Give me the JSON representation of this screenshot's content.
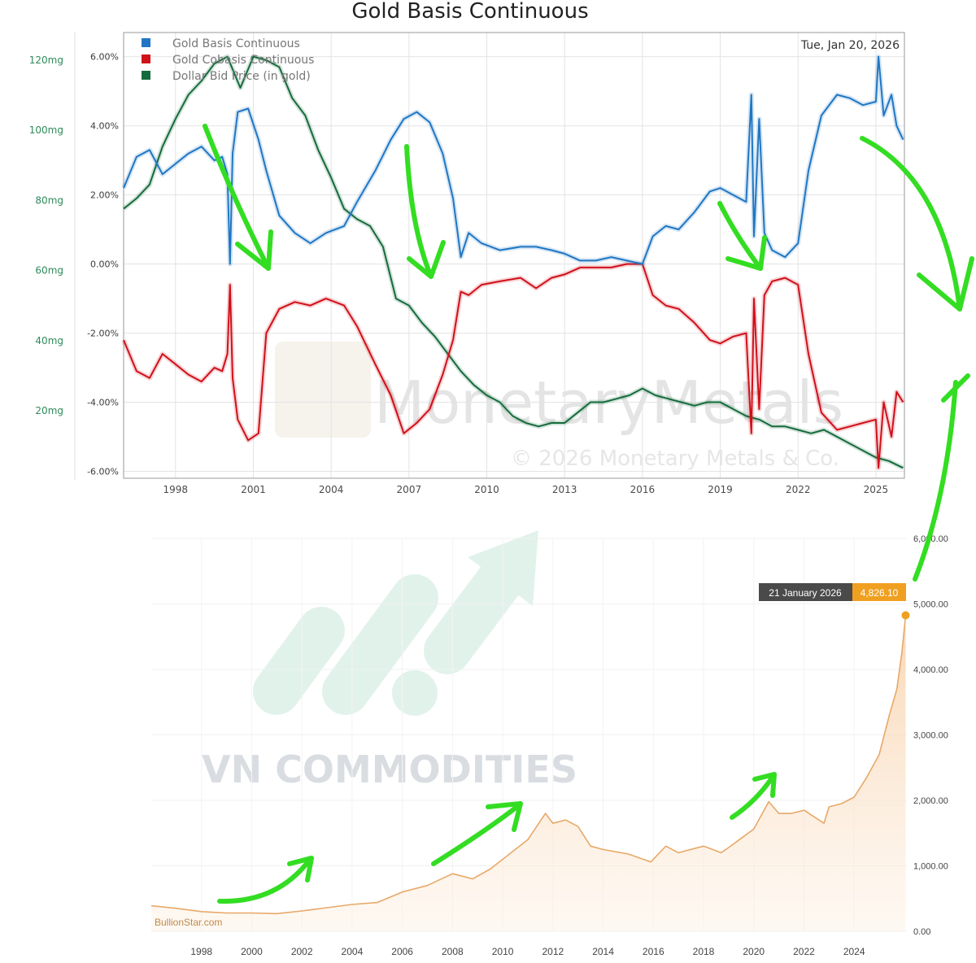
{
  "top_chart": {
    "title": "Gold Basis Continuous",
    "date_label": "Tue, Jan 20, 2026",
    "watermark": "MonetaryMetals",
    "copyright": "© 2026 Monetary Metals & Co.",
    "colors": {
      "basis": "#1f77c4",
      "cobasis": "#d0101a",
      "dollar": "#156b3c"
    }
  },
  "bottom_chart": {
    "tooltip_date": "21 January 2026",
    "tooltip_value": "4,826.10",
    "credit": "BullionStar.com",
    "watermark_text": "VN COMMODITIES",
    "colors": {
      "line": "#e8a868",
      "fill": "#fbe2c8",
      "tip_dark": "#4a4a4a",
      "tip_accent": "#f0a020",
      "dot": "#f0a020"
    }
  },
  "annotations": {
    "arrow_color": "#33dd22"
  },
  "chart_data": [
    {
      "type": "line",
      "title": "Gold Basis Continuous",
      "xlabel": "",
      "ylabel": "",
      "xlim": [
        1996.0,
        2026.1
      ],
      "ylim": [
        -6.2,
        6.7
      ],
      "x_ticks": [
        "1998",
        "2001",
        "2004",
        "2007",
        "2010",
        "2013",
        "2016",
        "2019",
        "2022",
        "2025"
      ],
      "y_ticks_left": [
        "6.00%",
        "4.00%",
        "2.00%",
        "0.00%",
        "-2.00%",
        "-4.00%",
        "-6.00%"
      ],
      "y_ticks_secondary": [
        "120mg",
        "100mg",
        "80mg",
        "60mg",
        "40mg",
        "20mg"
      ],
      "legend": "top-left",
      "grid": true,
      "series": [
        {
          "name": "Gold Basis Continuous",
          "points": [
            [
              1996.0,
              2.2
            ],
            [
              1996.5,
              3.1
            ],
            [
              1997.0,
              3.3
            ],
            [
              1997.5,
              2.6
            ],
            [
              1998.0,
              2.9
            ],
            [
              1998.5,
              3.2
            ],
            [
              1999.0,
              3.4
            ],
            [
              1999.5,
              3.0
            ],
            [
              1999.8,
              3.1
            ],
            [
              2000.0,
              2.6
            ],
            [
              2000.1,
              0.0
            ],
            [
              2000.2,
              3.2
            ],
            [
              2000.4,
              4.4
            ],
            [
              2000.8,
              4.5
            ],
            [
              2001.2,
              3.6
            ],
            [
              2001.5,
              2.7
            ],
            [
              2002.0,
              1.4
            ],
            [
              2002.6,
              0.9
            ],
            [
              2003.2,
              0.6
            ],
            [
              2003.8,
              0.9
            ],
            [
              2004.5,
              1.1
            ],
            [
              2005.0,
              1.8
            ],
            [
              2005.7,
              2.7
            ],
            [
              2006.3,
              3.6
            ],
            [
              2006.8,
              4.2
            ],
            [
              2007.3,
              4.4
            ],
            [
              2007.8,
              4.1
            ],
            [
              2008.3,
              3.2
            ],
            [
              2008.7,
              1.9
            ],
            [
              2009.0,
              0.2
            ],
            [
              2009.3,
              0.9
            ],
            [
              2009.8,
              0.6
            ],
            [
              2010.5,
              0.4
            ],
            [
              2011.3,
              0.5
            ],
            [
              2011.9,
              0.5
            ],
            [
              2012.5,
              0.4
            ],
            [
              2013.0,
              0.3
            ],
            [
              2013.6,
              0.1
            ],
            [
              2014.2,
              0.1
            ],
            [
              2014.8,
              0.2
            ],
            [
              2015.4,
              0.1
            ],
            [
              2016.0,
              0.0
            ],
            [
              2016.4,
              0.8
            ],
            [
              2016.9,
              1.1
            ],
            [
              2017.4,
              1.0
            ],
            [
              2018.0,
              1.5
            ],
            [
              2018.6,
              2.1
            ],
            [
              2019.0,
              2.2
            ],
            [
              2019.5,
              2.0
            ],
            [
              2020.0,
              1.8
            ],
            [
              2020.2,
              4.9
            ],
            [
              2020.3,
              0.8
            ],
            [
              2020.5,
              4.2
            ],
            [
              2020.7,
              0.9
            ],
            [
              2021.0,
              0.4
            ],
            [
              2021.5,
              0.2
            ],
            [
              2022.0,
              0.6
            ],
            [
              2022.4,
              2.7
            ],
            [
              2022.9,
              4.3
            ],
            [
              2023.5,
              4.9
            ],
            [
              2024.0,
              4.8
            ],
            [
              2024.5,
              4.6
            ],
            [
              2025.0,
              4.7
            ],
            [
              2025.1,
              6.0
            ],
            [
              2025.3,
              4.3
            ],
            [
              2025.6,
              4.9
            ],
            [
              2025.8,
              4.0
            ],
            [
              2026.05,
              3.6
            ]
          ]
        },
        {
          "name": "Gold Cobasis Continuous",
          "points": [
            [
              1996.0,
              -2.2
            ],
            [
              1996.5,
              -3.1
            ],
            [
              1997.0,
              -3.3
            ],
            [
              1997.5,
              -2.6
            ],
            [
              1998.0,
              -2.9
            ],
            [
              1998.5,
              -3.2
            ],
            [
              1999.0,
              -3.4
            ],
            [
              1999.5,
              -3.0
            ],
            [
              1999.8,
              -3.1
            ],
            [
              2000.0,
              -2.6
            ],
            [
              2000.1,
              -0.6
            ],
            [
              2000.2,
              -3.3
            ],
            [
              2000.4,
              -4.5
            ],
            [
              2000.8,
              -5.1
            ],
            [
              2001.2,
              -4.9
            ],
            [
              2001.5,
              -2.0
            ],
            [
              2002.0,
              -1.3
            ],
            [
              2002.6,
              -1.1
            ],
            [
              2003.2,
              -1.2
            ],
            [
              2003.8,
              -1.0
            ],
            [
              2004.5,
              -1.2
            ],
            [
              2005.0,
              -1.8
            ],
            [
              2005.7,
              -2.9
            ],
            [
              2006.3,
              -3.8
            ],
            [
              2006.8,
              -4.9
            ],
            [
              2007.3,
              -4.6
            ],
            [
              2007.8,
              -4.2
            ],
            [
              2008.3,
              -3.2
            ],
            [
              2008.7,
              -2.2
            ],
            [
              2009.0,
              -0.8
            ],
            [
              2009.3,
              -0.9
            ],
            [
              2009.8,
              -0.6
            ],
            [
              2010.5,
              -0.5
            ],
            [
              2011.3,
              -0.4
            ],
            [
              2011.9,
              -0.7
            ],
            [
              2012.5,
              -0.4
            ],
            [
              2013.0,
              -0.3
            ],
            [
              2013.6,
              -0.1
            ],
            [
              2014.2,
              -0.1
            ],
            [
              2014.8,
              -0.1
            ],
            [
              2015.4,
              0.0
            ],
            [
              2016.0,
              0.0
            ],
            [
              2016.4,
              -0.9
            ],
            [
              2016.9,
              -1.2
            ],
            [
              2017.4,
              -1.3
            ],
            [
              2018.0,
              -1.7
            ],
            [
              2018.6,
              -2.2
            ],
            [
              2019.0,
              -2.3
            ],
            [
              2019.5,
              -2.1
            ],
            [
              2020.0,
              -2.0
            ],
            [
              2020.2,
              -4.9
            ],
            [
              2020.3,
              -1.0
            ],
            [
              2020.5,
              -4.2
            ],
            [
              2020.7,
              -0.9
            ],
            [
              2021.0,
              -0.5
            ],
            [
              2021.5,
              -0.4
            ],
            [
              2022.0,
              -0.6
            ],
            [
              2022.4,
              -2.6
            ],
            [
              2022.9,
              -4.3
            ],
            [
              2023.5,
              -4.8
            ],
            [
              2024.0,
              -4.7
            ],
            [
              2024.5,
              -4.6
            ],
            [
              2025.0,
              -4.5
            ],
            [
              2025.1,
              -5.9
            ],
            [
              2025.3,
              -4.0
            ],
            [
              2025.6,
              -5.0
            ],
            [
              2025.8,
              -3.7
            ],
            [
              2026.05,
              -4.0
            ]
          ]
        },
        {
          "name": "Dollar Bid Price (in gold)",
          "points": [
            [
              1996.0,
              1.6
            ],
            [
              1996.5,
              1.9
            ],
            [
              1997.0,
              2.3
            ],
            [
              1997.5,
              3.4
            ],
            [
              1998.0,
              4.2
            ],
            [
              1998.5,
              4.9
            ],
            [
              1999.0,
              5.3
            ],
            [
              1999.5,
              5.8
            ],
            [
              2000.0,
              6.0
            ],
            [
              2000.5,
              5.1
            ],
            [
              2001.0,
              6.0
            ],
            [
              2001.5,
              5.9
            ],
            [
              2002.0,
              5.7
            ],
            [
              2002.5,
              4.8
            ],
            [
              2003.0,
              4.3
            ],
            [
              2003.5,
              3.3
            ],
            [
              2004.0,
              2.5
            ],
            [
              2004.5,
              1.6
            ],
            [
              2005.0,
              1.3
            ],
            [
              2005.5,
              1.1
            ],
            [
              2006.0,
              0.5
            ],
            [
              2006.5,
              -1.0
            ],
            [
              2007.0,
              -1.2
            ],
            [
              2007.5,
              -1.7
            ],
            [
              2008.0,
              -2.1
            ],
            [
              2008.5,
              -2.6
            ],
            [
              2009.0,
              -3.1
            ],
            [
              2009.5,
              -3.5
            ],
            [
              2010.0,
              -3.8
            ],
            [
              2010.5,
              -4.0
            ],
            [
              2011.0,
              -4.4
            ],
            [
              2011.5,
              -4.6
            ],
            [
              2012.0,
              -4.7
            ],
            [
              2012.5,
              -4.6
            ],
            [
              2013.0,
              -4.6
            ],
            [
              2013.5,
              -4.3
            ],
            [
              2014.0,
              -4.0
            ],
            [
              2014.5,
              -4.0
            ],
            [
              2015.0,
              -3.9
            ],
            [
              2015.5,
              -3.8
            ],
            [
              2016.0,
              -3.6
            ],
            [
              2016.5,
              -3.8
            ],
            [
              2017.0,
              -3.9
            ],
            [
              2017.5,
              -4.0
            ],
            [
              2018.0,
              -4.1
            ],
            [
              2018.5,
              -4.0
            ],
            [
              2019.0,
              -4.0
            ],
            [
              2019.5,
              -4.2
            ],
            [
              2020.0,
              -4.4
            ],
            [
              2020.5,
              -4.5
            ],
            [
              2021.0,
              -4.7
            ],
            [
              2021.5,
              -4.7
            ],
            [
              2022.0,
              -4.8
            ],
            [
              2022.5,
              -4.9
            ],
            [
              2023.0,
              -4.8
            ],
            [
              2023.5,
              -5.0
            ],
            [
              2024.0,
              -5.2
            ],
            [
              2024.5,
              -5.4
            ],
            [
              2025.0,
              -5.6
            ],
            [
              2025.5,
              -5.7
            ],
            [
              2026.05,
              -5.9
            ]
          ]
        }
      ]
    },
    {
      "type": "area",
      "title": "",
      "xlabel": "",
      "ylabel": "",
      "xlim": [
        1996.0,
        2026.1
      ],
      "ylim": [
        0,
        6000
      ],
      "x_ticks": [
        "1998",
        "2000",
        "2002",
        "2004",
        "2006",
        "2008",
        "2010",
        "2012",
        "2014",
        "2016",
        "2018",
        "2020",
        "2022",
        "2024"
      ],
      "y_ticks_right": [
        "0.00",
        "1,000.00",
        "2,000.00",
        "3,000.00",
        "4,000.00",
        "5,000.00",
        "6,000.00"
      ],
      "grid": true,
      "series": [
        {
          "points": [
            [
              1996.0,
              390
            ],
            [
              1997.0,
              350
            ],
            [
              1998.0,
              300
            ],
            [
              1999.0,
              280
            ],
            [
              2000.0,
              280
            ],
            [
              2001.0,
              270
            ],
            [
              2002.0,
              310
            ],
            [
              2003.0,
              360
            ],
            [
              2004.0,
              410
            ],
            [
              2005.0,
              440
            ],
            [
              2006.0,
              600
            ],
            [
              2007.0,
              700
            ],
            [
              2008.0,
              880
            ],
            [
              2008.8,
              800
            ],
            [
              2009.5,
              950
            ],
            [
              2010.0,
              1100
            ],
            [
              2010.5,
              1250
            ],
            [
              2011.0,
              1400
            ],
            [
              2011.7,
              1800
            ],
            [
              2012.0,
              1650
            ],
            [
              2012.5,
              1700
            ],
            [
              2013.0,
              1600
            ],
            [
              2013.5,
              1300
            ],
            [
              2014.0,
              1250
            ],
            [
              2015.0,
              1180
            ],
            [
              2015.9,
              1060
            ],
            [
              2016.5,
              1300
            ],
            [
              2017.0,
              1200
            ],
            [
              2018.0,
              1300
            ],
            [
              2018.7,
              1200
            ],
            [
              2019.0,
              1280
            ],
            [
              2019.5,
              1420
            ],
            [
              2020.0,
              1560
            ],
            [
              2020.6,
              1980
            ],
            [
              2021.0,
              1800
            ],
            [
              2021.5,
              1800
            ],
            [
              2022.0,
              1850
            ],
            [
              2022.8,
              1650
            ],
            [
              2023.0,
              1900
            ],
            [
              2023.5,
              1950
            ],
            [
              2024.0,
              2050
            ],
            [
              2024.5,
              2350
            ],
            [
              2025.0,
              2700
            ],
            [
              2025.4,
              3300
            ],
            [
              2025.7,
              3700
            ],
            [
              2025.9,
              4250
            ],
            [
              2026.05,
              4826.1
            ]
          ]
        }
      ]
    }
  ]
}
